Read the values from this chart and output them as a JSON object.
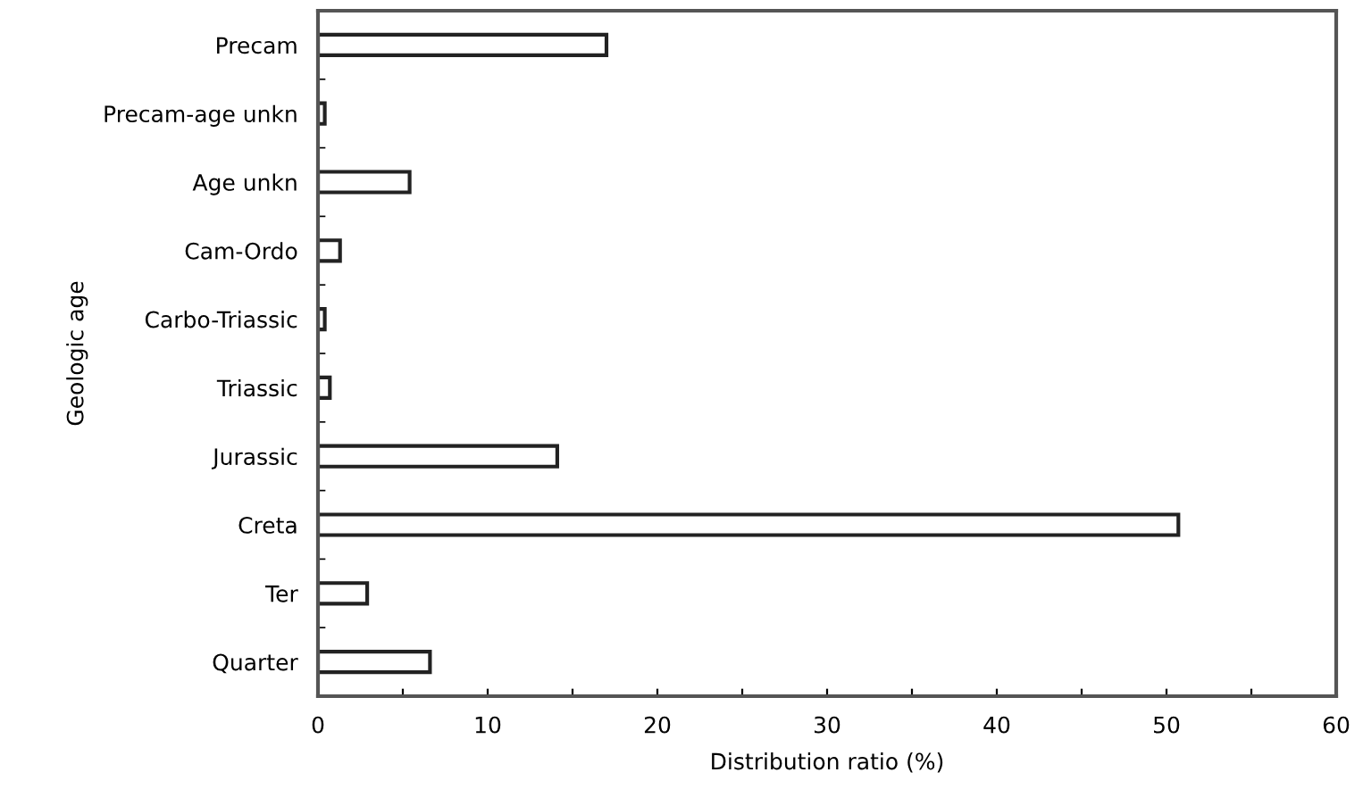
{
  "chart_data": {
    "type": "bar",
    "orientation": "horizontal",
    "xlabel": "Distribution ratio (%)",
    "ylabel": "Geologic age",
    "categories": [
      "Precam",
      "Precam-age unkn",
      "Age unkn",
      "Cam-Ordo",
      "Carbo-Triassic",
      "Triassic",
      "Jurassic",
      "Creta",
      "Ter",
      "Quarter"
    ],
    "values": [
      17.0,
      0.4,
      5.4,
      1.3,
      0.4,
      0.7,
      14.1,
      50.7,
      2.9,
      6.6
    ],
    "color": "#ffffff",
    "xlim": [
      0,
      60
    ],
    "xticks": [
      0,
      {
        "value": 5,
        "label": null
      },
      10,
      {
        "value": 15,
        "label": null
      },
      20,
      {
        "value": 25,
        "label": null
      },
      30,
      {
        "value": 35,
        "label": null
      },
      40,
      {
        "value": 45,
        "label": null
      },
      50,
      {
        "value": 55,
        "label": null
      },
      60
    ],
    "grid": false,
    "legend": false
  }
}
